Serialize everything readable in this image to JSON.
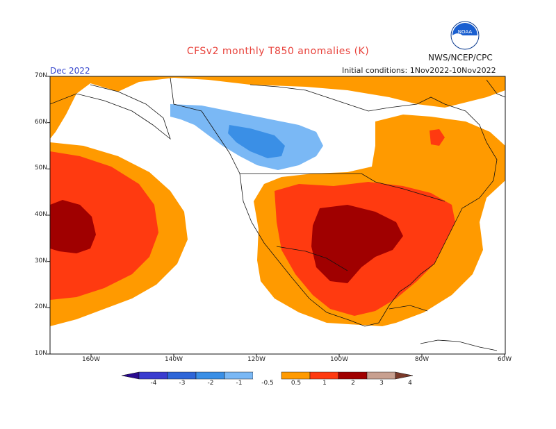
{
  "header": {
    "title": "CFSv2 monthly T850 anomalies (K)",
    "org": "NWS/NCEP/CPC",
    "month": "Dec 2022",
    "initial_conditions": "Initial conditions: 1Nov2022-10Nov2022"
  },
  "logo": {
    "icon": "noaa-logo-icon",
    "text": "NOAA"
  },
  "axes": {
    "lat_labels": [
      "70N",
      "60N",
      "50N",
      "40N",
      "30N",
      "20N",
      "10N"
    ],
    "lon_labels": [
      "160W",
      "140W",
      "120W",
      "100W",
      "80W",
      "60W"
    ]
  },
  "colorbar": {
    "labels": [
      "-4",
      "-3",
      "-2",
      "-1",
      "-0.5",
      "0.5",
      "1",
      "2",
      "3",
      "4"
    ],
    "colors": {
      "lt_-4": "#2a0a8f",
      "-4_-3": "#3a3ccf",
      "-3_-2": "#2e66d8",
      "-2_-1": "#3a8fe6",
      "-1_-0.5": "#7ab8f5",
      "-0.5_0.5": "#ffffff",
      "0.5_1": "#ff9a00",
      "1_2": "#ff3a10",
      "2_3": "#a00000",
      "3_4": "#c8a090",
      "gt_4": "#7a3a2a"
    }
  }
}
